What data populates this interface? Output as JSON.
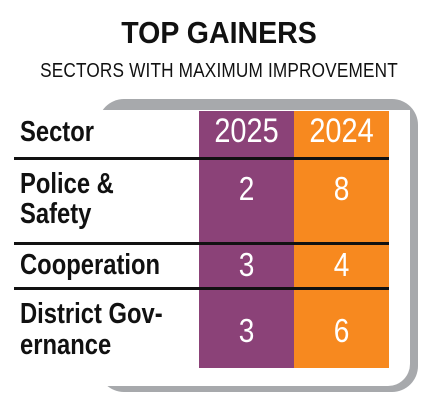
{
  "chart_data": {
    "type": "table",
    "title": "TOP GAINERS",
    "subtitle": "SECTORS WITH MAXIMUM IMPROVEMENT",
    "columns": [
      "Sector",
      "2025",
      "2024"
    ],
    "rows": [
      {
        "sector_line1": "Police &",
        "sector_line2": "Safety",
        "v2025": 2,
        "v2024": 8
      },
      {
        "sector_line1": "Cooperation",
        "sector_line2": "",
        "v2025": 3,
        "v2024": 4
      },
      {
        "sector_line1": "District Gov-",
        "sector_line2": "ernance",
        "v2025": 3,
        "v2024": 6
      }
    ],
    "colors": {
      "col_2025": "#8b4278",
      "col_2024": "#f7891f",
      "shadow": "#a7a9ac"
    }
  }
}
